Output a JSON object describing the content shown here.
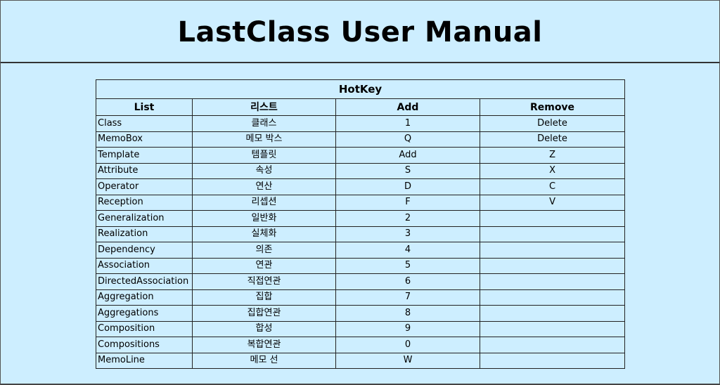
{
  "header": {
    "title": "LastClass User Manual"
  },
  "table": {
    "caption": "HotKey",
    "columns": [
      "List",
      "리스트",
      "Add",
      "Remove"
    ],
    "rows": [
      {
        "list": "Class",
        "ko": "클래스",
        "add": "1",
        "remove": "Delete"
      },
      {
        "list": "MemoBox",
        "ko": "메모 박스",
        "add": "Q",
        "remove": "Delete"
      },
      {
        "list": "Template",
        "ko": "템플릿",
        "add": "Add",
        "remove": "Z"
      },
      {
        "list": "Attribute",
        "ko": "속성",
        "add": "S",
        "remove": "X"
      },
      {
        "list": "Operator",
        "ko": "연산",
        "add": "D",
        "remove": "C"
      },
      {
        "list": "Reception",
        "ko": "리셉션",
        "add": "F",
        "remove": "V"
      },
      {
        "list": "Generalization",
        "ko": "일반화",
        "add": "2",
        "remove": ""
      },
      {
        "list": "Realization",
        "ko": "실체화",
        "add": "3",
        "remove": ""
      },
      {
        "list": "Dependency",
        "ko": "의존",
        "add": "4",
        "remove": ""
      },
      {
        "list": "Association",
        "ko": "연관",
        "add": "5",
        "remove": ""
      },
      {
        "list": "DirectedAssociation",
        "ko": "직접연관",
        "add": "6",
        "remove": ""
      },
      {
        "list": "Aggregation",
        "ko": "집합",
        "add": "7",
        "remove": ""
      },
      {
        "list": "Aggregations",
        "ko": "집합연관",
        "add": "8",
        "remove": ""
      },
      {
        "list": "Composition",
        "ko": "합성",
        "add": "9",
        "remove": ""
      },
      {
        "list": "Compositions",
        "ko": "복합연관",
        "add": "0",
        "remove": ""
      },
      {
        "list": "MemoLine",
        "ko": "메모 선",
        "add": "W",
        "remove": ""
      }
    ]
  }
}
